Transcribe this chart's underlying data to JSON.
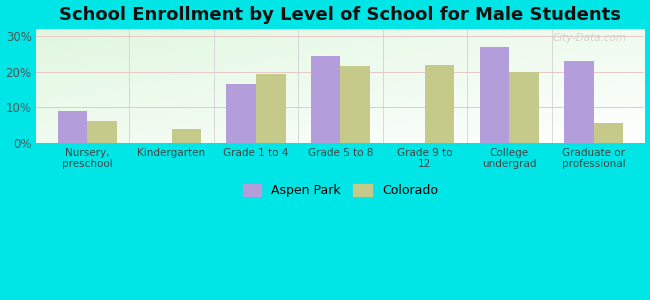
{
  "title": "School Enrollment by Level of School for Male Students",
  "categories": [
    "Nursery,\npreschool",
    "Kindergarten",
    "Grade 1 to 4",
    "Grade 5 to 8",
    "Grade 9 to\n12",
    "College\nundergrad",
    "Graduate or\nprofessional"
  ],
  "aspen_park": [
    9.0,
    0.0,
    16.5,
    24.5,
    0.0,
    27.0,
    23.0
  ],
  "colorado": [
    6.0,
    4.0,
    19.5,
    21.5,
    22.0,
    20.0,
    5.5
  ],
  "aspen_color": "#b39ddb",
  "colorado_color": "#c5c98a",
  "bar_width": 0.35,
  "ylim": [
    0,
    32
  ],
  "yticks": [
    0,
    10,
    20,
    30
  ],
  "ytick_labels": [
    "0%",
    "10%",
    "20%",
    "30%"
  ],
  "figure_bg": "#00e5e5",
  "title_fontsize": 13,
  "legend_labels": [
    "Aspen Park",
    "Colorado"
  ],
  "watermark": "City-Data.com"
}
